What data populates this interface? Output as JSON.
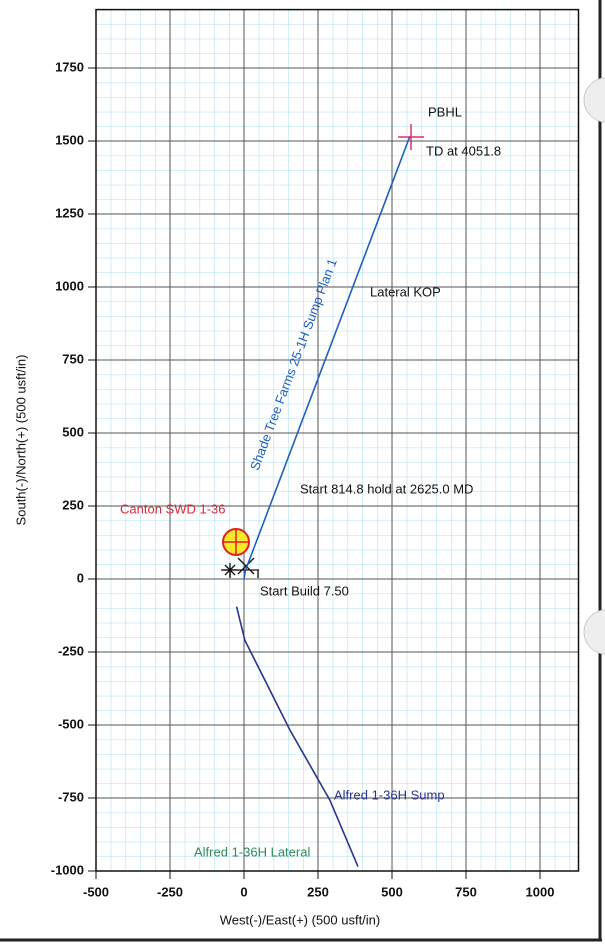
{
  "chart_data": {
    "type": "line",
    "x_label": "West(-)/East(+) (500 usft/in)",
    "y_label": "South(-)/North(+) (500 usft/in)",
    "xlim": [
      -500,
      1130
    ],
    "ylim": [
      -1000,
      1950
    ],
    "xticks": [
      -500,
      -250,
      0,
      250,
      500,
      750,
      1000
    ],
    "yticks": [
      -1000,
      -750,
      -500,
      -250,
      0,
      250,
      500,
      750,
      1000,
      1250,
      1500,
      1750
    ],
    "grid": true,
    "series": [
      {
        "name": "Shade Tree Farms 25-1H Sump Plan 1",
        "color": "#1f5fbf",
        "x": [
          0,
          5,
          560
        ],
        "values": [
          0,
          30,
          1515
        ]
      },
      {
        "name": "Alfred 1-36H Sump",
        "color": "#2a3590",
        "x": [
          -25,
          3,
          155,
          290,
          385
        ],
        "values": [
          -95,
          -210,
          -517,
          -757,
          -985
        ]
      }
    ],
    "annotations": {
      "pbhl": "PBHL",
      "td": "TD at 4051.8",
      "lateral_kop": "Lateral KOP",
      "hold": "Start 814.8 hold at 2625.0 MD",
      "build": "Start Build 7.50",
      "canton": "Canton SWD 1-36",
      "alfred_lateral": "Alfred 1-36H Lateral"
    }
  }
}
